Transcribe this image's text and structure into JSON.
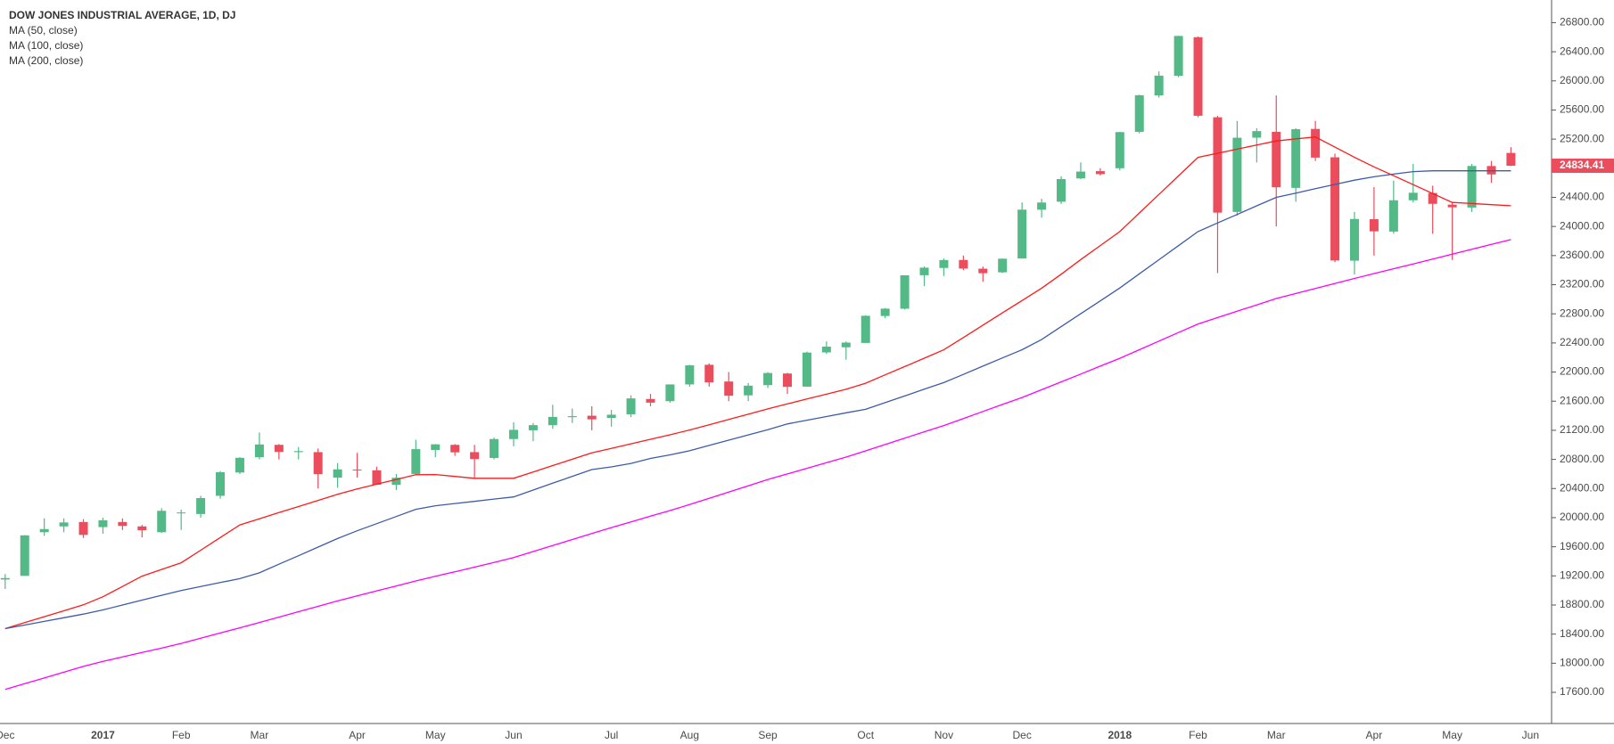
{
  "chart_data": {
    "type": "candlestick",
    "title": "DOW JONES INDUSTRIAL AVERAGE, 1D, DJ",
    "categories": [
      "Dec",
      null,
      null,
      null,
      null,
      "2017",
      null,
      null,
      null,
      "Feb",
      null,
      null,
      null,
      "Mar",
      null,
      null,
      null,
      null,
      "Apr",
      null,
      null,
      null,
      "May",
      null,
      null,
      null,
      "Jun",
      null,
      null,
      null,
      null,
      "Jul",
      null,
      null,
      null,
      "Aug",
      null,
      null,
      null,
      "Sep",
      null,
      null,
      null,
      null,
      "Oct",
      null,
      null,
      null,
      "Nov",
      null,
      null,
      null,
      "Dec",
      null,
      null,
      null,
      null,
      "2018",
      null,
      null,
      null,
      "Feb",
      null,
      null,
      null,
      "Mar",
      null,
      null,
      null,
      null,
      "Apr",
      null,
      null,
      null,
      "May",
      null,
      null,
      null,
      "Jun"
    ],
    "open": [
      19150,
      19200,
      19800,
      19880,
      19940,
      19870,
      19940,
      19880,
      19800,
      20060,
      20050,
      20300,
      20620,
      20830,
      21000,
      20900,
      20900,
      20550,
      20660,
      20650,
      20450,
      20600,
      20930,
      21000,
      20900,
      20820,
      21080,
      21200,
      21270,
      21380,
      21400,
      21370,
      21420,
      21630,
      21600,
      21830,
      22100,
      21870,
      21680,
      21820,
      21980,
      21800,
      22270,
      22340,
      22400,
      22770,
      22870,
      23330,
      23430,
      23540,
      23420,
      23370,
      23560,
      24230,
      24340,
      24660,
      24760,
      24800,
      25300,
      25800,
      26070,
      26600,
      25500,
      24200,
      25220,
      25300,
      24530,
      25340,
      24950,
      23530,
      24100,
      23930,
      24360,
      24460,
      24300,
      24260,
      24830,
      25010,
      null
    ],
    "high": [
      19225,
      19760,
      19990,
      19990,
      19980,
      19999,
      19990,
      19900,
      20130,
      20110,
      20300,
      20640,
      20830,
      21170,
      21010,
      20970,
      20950,
      20750,
      20890,
      20700,
      20600,
      21070,
      21010,
      21010,
      21000,
      21100,
      21310,
      21300,
      21550,
      21500,
      21530,
      21480,
      21680,
      21700,
      21830,
      22100,
      22120,
      22000,
      21850,
      22000,
      21990,
      22280,
      22420,
      22420,
      22780,
      22880,
      23330,
      23450,
      23560,
      23600,
      23450,
      23560,
      24330,
      24380,
      24690,
      24880,
      24800,
      25300,
      25810,
      26130,
      26620,
      26610,
      25520,
      25450,
      25350,
      25800,
      25350,
      25450,
      25000,
      24200,
      24540,
      24630,
      24860,
      24560,
      24330,
      24860,
      24900,
      25090,
      null
    ],
    "low": [
      19020,
      19200,
      19750,
      19800,
      19720,
      19780,
      19830,
      19730,
      19790,
      19830,
      20000,
      20260,
      20600,
      20800,
      20800,
      20800,
      20400,
      20410,
      20550,
      20450,
      20380,
      20590,
      20830,
      20850,
      20550,
      20800,
      20980,
      21050,
      21220,
      21300,
      21200,
      21250,
      21380,
      21530,
      21580,
      21800,
      21800,
      21600,
      21600,
      21780,
      21700,
      21800,
      22250,
      22170,
      22400,
      22740,
      22860,
      23180,
      23320,
      23400,
      23240,
      23360,
      23560,
      24120,
      24310,
      24650,
      24700,
      24770,
      25280,
      25770,
      26050,
      25500,
      23360,
      24150,
      24880,
      24000,
      24340,
      24900,
      23510,
      23340,
      23600,
      23900,
      24330,
      23900,
      23540,
      24200,
      24600,
      24830,
      null
    ],
    "close": [
      19170,
      19757,
      19843,
      19934,
      19763,
      19964,
      19886,
      19827,
      20094,
      20071,
      20269,
      20624,
      20822,
      21005,
      20903,
      20914,
      20597,
      20663,
      20656,
      20453,
      20548,
      20941,
      21007,
      20897,
      20805,
      21080,
      21206,
      21271,
      21384,
      21394,
      21350,
      21414,
      21638,
      21580,
      21830,
      22092,
      21858,
      21675,
      21813,
      21987,
      21797,
      22268,
      22349,
      22405,
      22773,
      22871,
      23329,
      23434,
      23539,
      23422,
      23358,
      23557,
      24231,
      24329,
      24651,
      24754,
      24719,
      25296,
      25803,
      26072,
      26617,
      25521,
      24190,
      25219,
      25310,
      24538,
      25336,
      24946,
      23533,
      24103,
      23933,
      24360,
      24463,
      24311,
      24263,
      24831,
      24715,
      24834.41,
      null
    ],
    "up_color": "#53b987",
    "down_color": "#eb4d5c",
    "series": [
      {
        "name": "MA (50, close)",
        "color": "#ff1a1a",
        "values": [
          18475,
          18557,
          18639,
          18720,
          18802,
          18914,
          19055,
          19196,
          19288,
          19380,
          19553,
          19727,
          19900,
          19984,
          20069,
          20153,
          20237,
          20321,
          20394,
          20460,
          20525,
          20590,
          20592,
          20566,
          20540,
          20540,
          20540,
          20628,
          20715,
          20803,
          20890,
          20952,
          21014,
          21076,
          21138,
          21204,
          21276,
          21349,
          21421,
          21494,
          21563,
          21630,
          21696,
          21763,
          21846,
          21961,
          22076,
          22191,
          22305,
          22475,
          22644,
          22814,
          22983,
          23152,
          23344,
          23546,
          23738,
          23930,
          24185,
          24440,
          24695,
          24950,
          25006,
          25062,
          25119,
          25175,
          25203,
          25230,
          25090,
          24950,
          24819,
          24697,
          24575,
          24452,
          24330,
          24315,
          24300,
          24285,
          null
        ]
      },
      {
        "name": "MA (100, close)",
        "color": "#3d5ba9",
        "values": [
          18475,
          18525,
          18575,
          18625,
          18675,
          18733,
          18800,
          18867,
          18933,
          19000,
          19054,
          19108,
          19162,
          19242,
          19360,
          19477,
          19595,
          19713,
          19819,
          19917,
          20015,
          20114,
          20164,
          20194,
          20224,
          20255,
          20285,
          20379,
          20473,
          20567,
          20661,
          20697,
          20745,
          20814,
          20862,
          20919,
          20992,
          21064,
          21137,
          21209,
          21287,
          21338,
          21389,
          21440,
          21488,
          21580,
          21672,
          21764,
          21855,
          21968,
          22081,
          22194,
          22307,
          22446,
          22624,
          22801,
          22978,
          23155,
          23349,
          23543,
          23736,
          23930,
          24048,
          24165,
          24283,
          24400,
          24459,
          24518,
          24577,
          24636,
          24683,
          24719,
          24754,
          24765,
          24765,
          24765,
          24765,
          24765,
          null
        ]
      },
      {
        "name": "MA (200, close)",
        "color": "#ff00ff",
        "values": [
          17640,
          17719,
          17798,
          17877,
          17956,
          18025,
          18086,
          18147,
          18208,
          18272,
          18344,
          18416,
          18487,
          18560,
          18634,
          18708,
          18782,
          18856,
          18926,
          18994,
          19062,
          19130,
          19194,
          19257,
          19320,
          19384,
          19451,
          19534,
          19617,
          19700,
          19783,
          19863,
          19941,
          20020,
          20098,
          20180,
          20266,
          20352,
          20438,
          20524,
          20600,
          20677,
          20755,
          20832,
          20917,
          21004,
          21092,
          21179,
          21265,
          21361,
          21458,
          21555,
          21651,
          21757,
          21865,
          21973,
          22081,
          22189,
          22307,
          22425,
          22543,
          22660,
          22748,
          22835,
          22923,
          23010,
          23079,
          23148,
          23217,
          23286,
          23353,
          23419,
          23486,
          23552,
          23619,
          23686,
          23753,
          23820,
          null
        ]
      }
    ],
    "ylim": [
      17172,
      27111
    ],
    "yticks": [
      {
        "value": 17600,
        "label": "17600.00"
      },
      {
        "value": 18000,
        "label": "18000.00"
      },
      {
        "value": 18400,
        "label": "18400.00"
      },
      {
        "value": 18800,
        "label": "18800.00"
      },
      {
        "value": 19200,
        "label": "19200.00"
      },
      {
        "value": 19600,
        "label": "19600.00"
      },
      {
        "value": 20000,
        "label": "20000.00"
      },
      {
        "value": 20400,
        "label": "20400.00"
      },
      {
        "value": 20800,
        "label": "20800.00"
      },
      {
        "value": 21200,
        "label": "21200.00"
      },
      {
        "value": 21600,
        "label": "21600.00"
      },
      {
        "value": 22000,
        "label": "22000.00"
      },
      {
        "value": 22400,
        "label": "22400.00"
      },
      {
        "value": 22800,
        "label": "22800.00"
      },
      {
        "value": 23200,
        "label": "23200.00"
      },
      {
        "value": 23600,
        "label": "23600.00"
      },
      {
        "value": 24000,
        "label": "24000.00"
      },
      {
        "value": 24400,
        "label": "24400.00"
      },
      {
        "value": 24800,
        "label": "24800.00"
      },
      {
        "value": 25200,
        "label": "25200.00"
      },
      {
        "value": 25600,
        "label": "25600.00"
      },
      {
        "value": 26000,
        "label": "26000.00"
      },
      {
        "value": 26400,
        "label": "26400.00"
      },
      {
        "value": 26800,
        "label": "26800.00"
      }
    ],
    "grid": false
  }
}
